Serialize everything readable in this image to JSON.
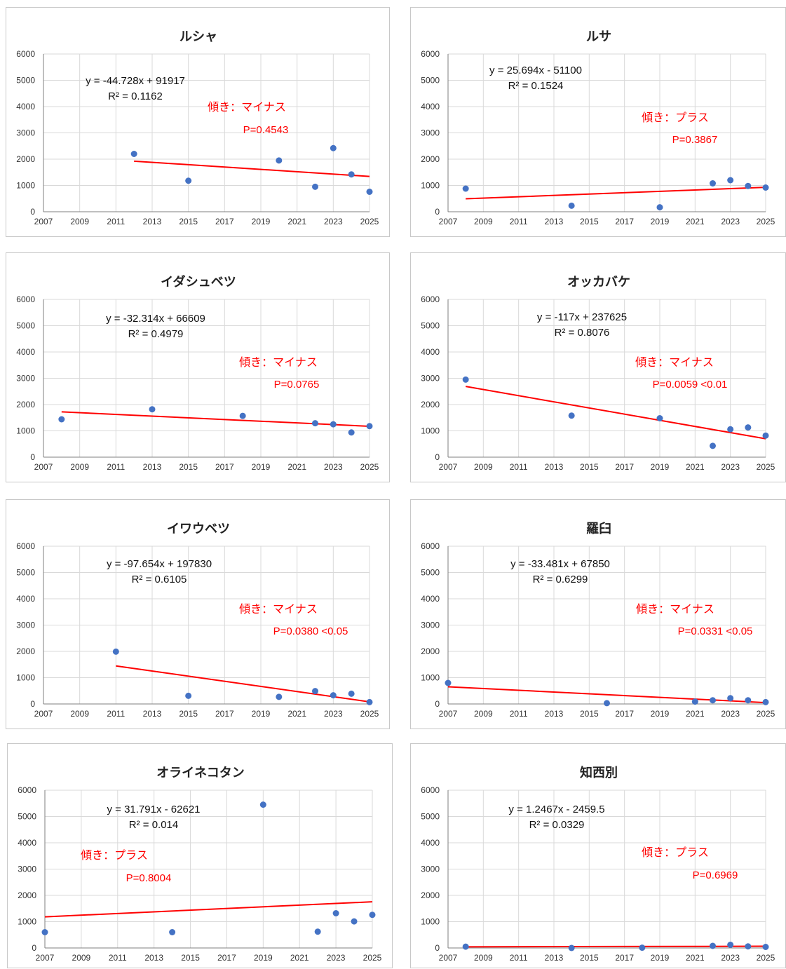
{
  "styles": {
    "point_color": "#4472c4",
    "trend_color": "#ff0000",
    "note_color": "#ff0000"
  },
  "chart_data": [
    {
      "type": "scatter",
      "title": "ルシャ",
      "xlim": [
        2007,
        2025
      ],
      "ylim": [
        0,
        6000
      ],
      "x_ticks": [
        "2007",
        "2009",
        "2011",
        "2013",
        "2015",
        "2017",
        "2019",
        "2021",
        "2023",
        "2025"
      ],
      "y_ticks": [
        "0",
        "1000",
        "2000",
        "3000",
        "4000",
        "5000",
        "6000"
      ],
      "points": [
        [
          2012,
          2200
        ],
        [
          2015,
          1180
        ],
        [
          2020,
          1950
        ],
        [
          2022,
          950
        ],
        [
          2023,
          2420
        ],
        [
          2024,
          1420
        ],
        [
          2025,
          760
        ]
      ],
      "trendline": {
        "slope": -44.728,
        "intercept": 91917,
        "x_range": [
          2012,
          2025
        ]
      },
      "equation": "y = -44.728x + 91917",
      "r2": "R² = 0.1162",
      "slope_note": "傾き：マイナス",
      "p_value": "P=0.4543",
      "grid": true
    },
    {
      "type": "scatter",
      "title": "ルサ",
      "xlim": [
        2007,
        2025
      ],
      "ylim": [
        0,
        6000
      ],
      "x_ticks": [
        "2007",
        "2009",
        "2011",
        "2013",
        "2015",
        "2017",
        "2019",
        "2021",
        "2023",
        "2025"
      ],
      "y_ticks": [
        "0",
        "1000",
        "2000",
        "3000",
        "4000",
        "5000",
        "6000"
      ],
      "points": [
        [
          2008,
          880
        ],
        [
          2014,
          230
        ],
        [
          2019,
          170
        ],
        [
          2022,
          1080
        ],
        [
          2023,
          1200
        ],
        [
          2024,
          980
        ],
        [
          2025,
          920
        ]
      ],
      "trendline": {
        "slope": 25.694,
        "intercept": -51100,
        "x_range": [
          2008,
          2025
        ]
      },
      "equation": "y = 25.694x - 51100",
      "r2": "R² = 0.1524",
      "slope_note": "傾き：プラス",
      "p_value": "P=0.3867",
      "grid": true
    },
    {
      "type": "scatter",
      "title": "イダシュベツ",
      "xlim": [
        2007,
        2025
      ],
      "ylim": [
        0,
        6000
      ],
      "x_ticks": [
        "2007",
        "2009",
        "2011",
        "2013",
        "2015",
        "2017",
        "2019",
        "2021",
        "2023",
        "2025"
      ],
      "y_ticks": [
        "0",
        "1000",
        "2000",
        "3000",
        "4000",
        "5000",
        "6000"
      ],
      "points": [
        [
          2008,
          1440
        ],
        [
          2013,
          1820
        ],
        [
          2018,
          1570
        ],
        [
          2022,
          1290
        ],
        [
          2023,
          1250
        ],
        [
          2024,
          940
        ],
        [
          2025,
          1180
        ]
      ],
      "trendline": {
        "slope": -32.314,
        "intercept": 66609,
        "x_range": [
          2008,
          2025
        ]
      },
      "equation": "y = -32.314x + 66609",
      "r2": "R² = 0.4979",
      "slope_note": "傾き：マイナス",
      "p_value": "P=0.0765",
      "grid": true
    },
    {
      "type": "scatter",
      "title": "オッカバケ",
      "xlim": [
        2007,
        2025
      ],
      "ylim": [
        0,
        6000
      ],
      "x_ticks": [
        "2007",
        "2009",
        "2011",
        "2013",
        "2015",
        "2017",
        "2019",
        "2021",
        "2023",
        "2025"
      ],
      "y_ticks": [
        "0",
        "1000",
        "2000",
        "3000",
        "4000",
        "5000",
        "6000"
      ],
      "points": [
        [
          2008,
          2950
        ],
        [
          2014,
          1580
        ],
        [
          2019,
          1480
        ],
        [
          2022,
          430
        ],
        [
          2023,
          1060
        ],
        [
          2024,
          1130
        ],
        [
          2025,
          820
        ]
      ],
      "trendline": {
        "slope": -117,
        "intercept": 237625,
        "x_range": [
          2008,
          2025
        ]
      },
      "equation": "y = -117x + 237625",
      "r2": "R² = 0.8076",
      "slope_note": "傾き：マイナス",
      "p_value": "P=0.0059 <0.01",
      "grid": true
    },
    {
      "type": "scatter",
      "title": "イワウベツ",
      "xlim": [
        2007,
        2025
      ],
      "ylim": [
        0,
        6000
      ],
      "x_ticks": [
        "2007",
        "2009",
        "2011",
        "2013",
        "2015",
        "2017",
        "2019",
        "2021",
        "2023",
        "2025"
      ],
      "y_ticks": [
        "0",
        "1000",
        "2000",
        "3000",
        "4000",
        "5000",
        "6000"
      ],
      "points": [
        [
          2011,
          1990
        ],
        [
          2015,
          310
        ],
        [
          2020,
          270
        ],
        [
          2022,
          490
        ],
        [
          2023,
          330
        ],
        [
          2024,
          390
        ],
        [
          2025,
          70
        ]
      ],
      "trendline": {
        "slope": -97.654,
        "intercept": 197830,
        "x_range": [
          2011,
          2025
        ]
      },
      "equation": "y = -97.654x + 197830",
      "r2": "R² = 0.6105",
      "slope_note": "傾き：マイナス",
      "p_value": "P=0.0380 <0.05",
      "grid": true
    },
    {
      "type": "scatter",
      "title": "羅臼",
      "xlim": [
        2007,
        2025
      ],
      "ylim": [
        0,
        6000
      ],
      "x_ticks": [
        "2007",
        "2009",
        "2011",
        "2013",
        "2015",
        "2017",
        "2019",
        "2021",
        "2023",
        "2025"
      ],
      "y_ticks": [
        "0",
        "1000",
        "2000",
        "3000",
        "4000",
        "5000",
        "6000"
      ],
      "points": [
        [
          2007,
          800
        ],
        [
          2016,
          30
        ],
        [
          2021,
          90
        ],
        [
          2022,
          140
        ],
        [
          2023,
          220
        ],
        [
          2024,
          140
        ],
        [
          2025,
          70
        ]
      ],
      "trendline": {
        "slope": -33.481,
        "intercept": 67850,
        "x_range": [
          2007,
          2025
        ]
      },
      "equation": "y = -33.481x + 67850",
      "r2": "R² = 0.6299",
      "slope_note": "傾き：マイナス",
      "p_value": "P=0.0331 <0.05",
      "grid": true
    },
    {
      "type": "scatter",
      "title": "オライネコタン",
      "xlim": [
        2007,
        2025
      ],
      "ylim": [
        0,
        6000
      ],
      "x_ticks": [
        "2007",
        "2009",
        "2011",
        "2013",
        "2015",
        "2017",
        "2019",
        "2021",
        "2023",
        "2025"
      ],
      "y_ticks": [
        "0",
        "1000",
        "2000",
        "3000",
        "4000",
        "5000",
        "6000"
      ],
      "points": [
        [
          2007,
          600
        ],
        [
          2014,
          600
        ],
        [
          2019,
          5450
        ],
        [
          2022,
          620
        ],
        [
          2023,
          1320
        ],
        [
          2024,
          1010
        ],
        [
          2025,
          1260
        ]
      ],
      "trendline": {
        "slope": 31.791,
        "intercept": -62621,
        "x_range": [
          2007,
          2025
        ]
      },
      "equation": "y = 31.791x - 62621",
      "r2": "R² = 0.014",
      "slope_note": "傾き：プラス",
      "p_value": "P=0.8004",
      "grid": true
    },
    {
      "type": "scatter",
      "title": "知西別",
      "xlim": [
        2007,
        2025
      ],
      "ylim": [
        0,
        6000
      ],
      "x_ticks": [
        "2007",
        "2009",
        "2011",
        "2013",
        "2015",
        "2017",
        "2019",
        "2021",
        "2023",
        "2025"
      ],
      "y_ticks": [
        "0",
        "1000",
        "2000",
        "3000",
        "4000",
        "5000",
        "6000"
      ],
      "points": [
        [
          2008,
          50
        ],
        [
          2014,
          0
        ],
        [
          2018,
          10
        ],
        [
          2022,
          80
        ],
        [
          2023,
          120
        ],
        [
          2024,
          60
        ],
        [
          2025,
          40
        ]
      ],
      "trendline": {
        "slope": 1.2467,
        "intercept": -2459.5,
        "x_range": [
          2008,
          2025
        ]
      },
      "equation": "y = 1.2467x - 2459.5",
      "r2": "R² = 0.0329",
      "slope_note": "傾き：プラス",
      "p_value": "P=0.6969",
      "grid": true
    }
  ]
}
